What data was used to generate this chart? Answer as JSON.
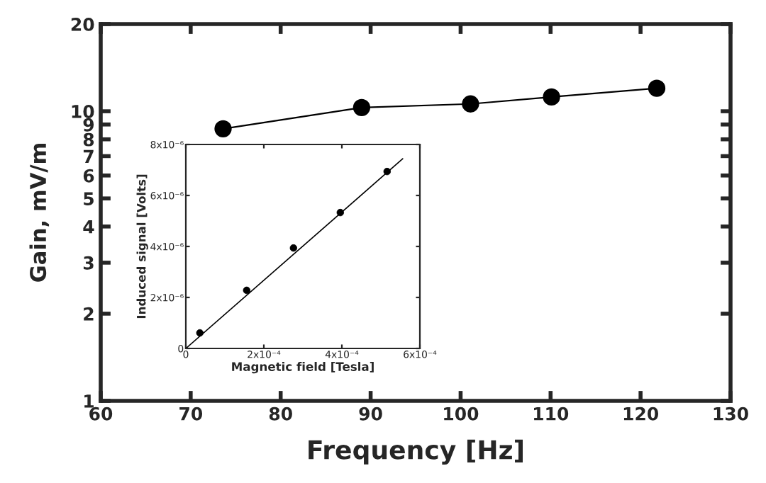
{
  "chart_data": [
    {
      "type": "line",
      "xlabel": "Frequency [Hz]",
      "ylabel": "Gain, mV/m",
      "log": "y",
      "marker": "circle",
      "line_style": "solid",
      "grid": false,
      "legend": false,
      "xlim": [
        60,
        130
      ],
      "xticks": [
        60,
        70,
        80,
        90,
        100,
        110,
        120,
        130
      ],
      "ylim": [
        1,
        20
      ],
      "yticks": [
        1,
        2,
        3,
        4,
        5,
        6,
        7,
        8,
        9,
        10,
        20
      ],
      "x": [
        73.6,
        89.0,
        101.1,
        110.1,
        121.8
      ],
      "series": [
        {
          "color": "#000000",
          "values": [
            8.7,
            10.3,
            10.6,
            11.2,
            12.0
          ]
        }
      ]
    },
    {
      "type": "scatter",
      "xlabel": "Magnetic field [Tesla]",
      "ylabel": "Induced signal [Volts]",
      "marker": "circle",
      "grid": false,
      "legend": false,
      "xlim": [
        0,
        0.0006
      ],
      "xticks": [
        {
          "value": 0,
          "label": "0"
        },
        {
          "value": 0.0002,
          "label": "2x10⁻⁴"
        },
        {
          "value": 0.0004,
          "label": "4x10⁻⁴"
        },
        {
          "value": 0.0006,
          "label": "6x10⁻⁴"
        }
      ],
      "ylim": [
        0,
        8e-06
      ],
      "yticks": [
        {
          "value": 0,
          "label": "0"
        },
        {
          "value": 2e-06,
          "label": "2x10⁻⁶"
        },
        {
          "value": 4e-06,
          "label": "4x10⁻⁶"
        },
        {
          "value": 6e-06,
          "label": "6x10⁻⁶"
        },
        {
          "value": 8e-06,
          "label": "8x10⁻⁶"
        }
      ],
      "series": [
        {
          "type": "scatter",
          "color": "#000000",
          "x": [
            3.6e-05,
            0.000156,
            0.000276,
            0.000396,
            0.000516
          ],
          "values": [
            6.1e-07,
            2.28e-06,
            3.94e-06,
            5.33e-06,
            6.94e-06
          ]
        },
        {
          "type": "line",
          "color": "#000000",
          "marker": "none",
          "x": [
            0,
            0.000556
          ],
          "values": [
            0,
            7.44e-06
          ]
        }
      ]
    }
  ]
}
